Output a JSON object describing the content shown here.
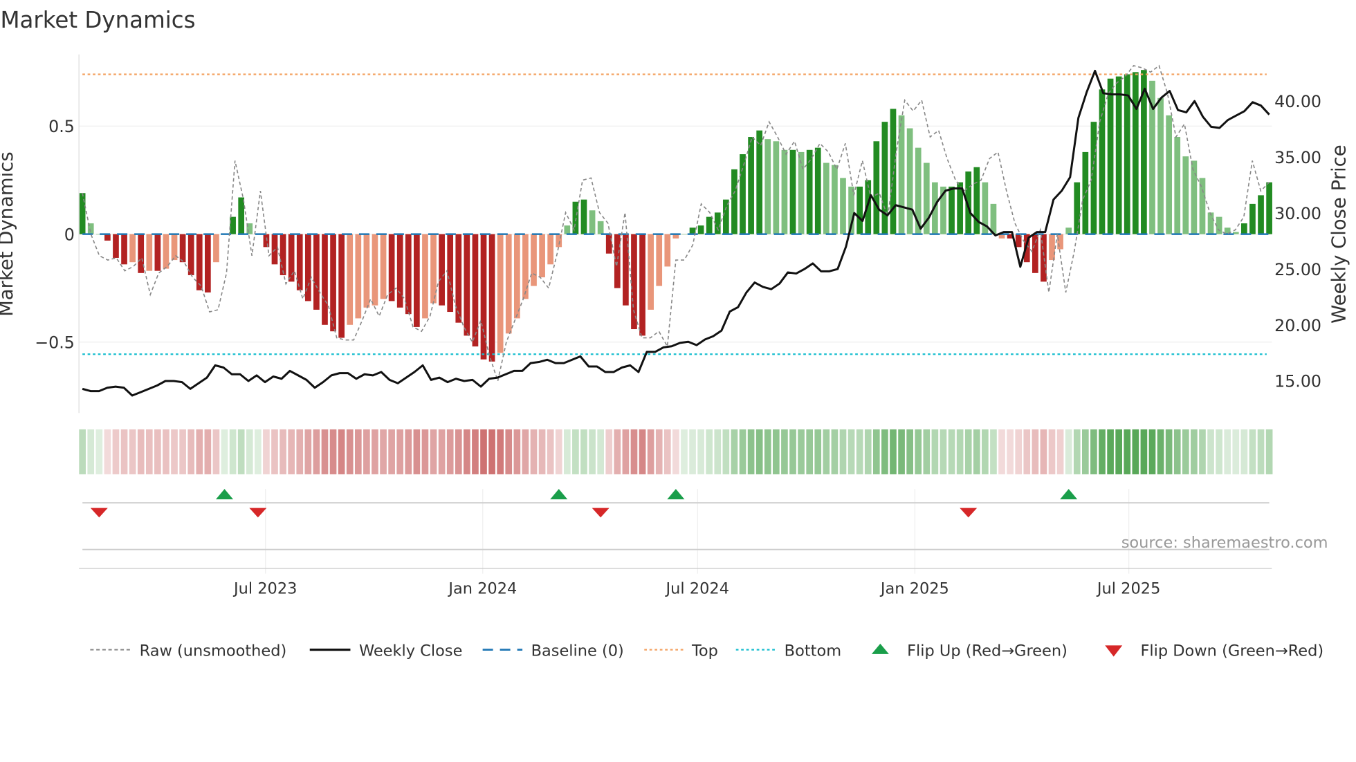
{
  "title": "Market Dynamics",
  "source": "source: sharemaestro.com",
  "chart_data": {
    "type": "bar",
    "title": "Market Dynamics",
    "ylabel": "Market Dynamics",
    "y2label": "Weekly Close Price",
    "ylim": [
      -0.82,
      0.83
    ],
    "y2lim": [
      13.0,
      44.5
    ],
    "yticks": [
      {
        "v": 0.5,
        "label": "0.5"
      },
      {
        "v": 0,
        "label": "0"
      },
      {
        "v": -0.5,
        "label": "−0.5"
      }
    ],
    "y2ticks": [
      {
        "v": 15,
        "label": "15.00"
      },
      {
        "v": 20,
        "label": "20.00"
      },
      {
        "v": 25,
        "label": "25.00"
      },
      {
        "v": 30,
        "label": "30.00"
      },
      {
        "v": 35,
        "label": "35.00"
      },
      {
        "v": 40,
        "label": "40.00"
      }
    ],
    "xticks": [
      {
        "week": 21.9,
        "label": "Jul 2023"
      },
      {
        "week": 47.9,
        "label": "Jan 2024"
      },
      {
        "week": 73.6,
        "label": "Jul 2024"
      },
      {
        "week": 99.6,
        "label": "Jan 2025"
      },
      {
        "week": 125.2,
        "label": "Jul 2025"
      }
    ],
    "top_level": 0.74,
    "bottom_level": -0.556,
    "baseline": 0,
    "bars": [
      0.19,
      0.05,
      0.0,
      -0.03,
      -0.11,
      -0.14,
      -0.13,
      -0.18,
      -0.17,
      -0.17,
      -0.16,
      -0.12,
      -0.13,
      -0.19,
      -0.26,
      -0.27,
      -0.13,
      0.0,
      0.08,
      0.17,
      0.05,
      0.0,
      -0.06,
      -0.14,
      -0.19,
      -0.22,
      -0.26,
      -0.31,
      -0.35,
      -0.42,
      -0.45,
      -0.48,
      -0.42,
      -0.39,
      -0.34,
      -0.33,
      -0.3,
      -0.31,
      -0.34,
      -0.37,
      -0.43,
      -0.39,
      -0.32,
      -0.33,
      -0.36,
      -0.41,
      -0.47,
      -0.52,
      -0.58,
      -0.59,
      -0.55,
      -0.46,
      -0.39,
      -0.3,
      -0.24,
      -0.2,
      -0.14,
      -0.06,
      0.04,
      0.15,
      0.16,
      0.11,
      0.06,
      -0.09,
      -0.25,
      -0.33,
      -0.44,
      -0.47,
      -0.35,
      -0.24,
      -0.15,
      -0.02,
      0.0,
      0.03,
      0.04,
      0.08,
      0.1,
      0.16,
      0.3,
      0.37,
      0.45,
      0.48,
      0.44,
      0.43,
      0.39,
      0.39,
      0.38,
      0.39,
      0.4,
      0.33,
      0.32,
      0.26,
      0.22,
      0.22,
      0.25,
      0.43,
      0.52,
      0.58,
      0.55,
      0.49,
      0.4,
      0.33,
      0.24,
      0.22,
      0.22,
      0.24,
      0.29,
      0.31,
      0.24,
      0.14,
      -0.02,
      -0.02,
      -0.06,
      -0.13,
      -0.18,
      -0.22,
      -0.12,
      -0.07,
      0.03,
      0.24,
      0.38,
      0.52,
      0.67,
      0.72,
      0.73,
      0.74,
      0.75,
      0.76,
      0.71,
      0.63,
      0.55,
      0.45,
      0.36,
      0.34,
      0.26,
      0.1,
      0.08,
      0.03,
      0.01,
      0.05,
      0.14,
      0.18,
      0.24
    ],
    "raw": [
      0.19,
      0.0,
      -0.1,
      -0.12,
      -0.11,
      -0.17,
      -0.15,
      -0.11,
      -0.28,
      -0.18,
      -0.15,
      -0.1,
      -0.13,
      -0.2,
      -0.24,
      -0.36,
      -0.35,
      -0.18,
      0.34,
      0.16,
      -0.1,
      0.2,
      -0.1,
      -0.06,
      -0.23,
      -0.17,
      -0.3,
      -0.2,
      -0.27,
      -0.33,
      -0.48,
      -0.49,
      -0.49,
      -0.4,
      -0.3,
      -0.38,
      -0.28,
      -0.25,
      -0.3,
      -0.43,
      -0.45,
      -0.38,
      -0.22,
      -0.17,
      -0.33,
      -0.43,
      -0.5,
      -0.4,
      -0.56,
      -0.68,
      -0.5,
      -0.4,
      -0.3,
      -0.18,
      -0.2,
      -0.25,
      -0.09,
      0.1,
      0.02,
      0.25,
      0.26,
      0.1,
      0.05,
      -0.15,
      0.1,
      -0.35,
      -0.48,
      -0.48,
      -0.45,
      -0.52,
      -0.12,
      -0.12,
      -0.05,
      0.14,
      0.1,
      0.02,
      0.13,
      0.2,
      0.32,
      0.45,
      0.41,
      0.52,
      0.45,
      0.37,
      0.43,
      0.3,
      0.35,
      0.42,
      0.38,
      0.3,
      0.42,
      0.18,
      0.34,
      0.17,
      0.19,
      0.08,
      0.38,
      0.62,
      0.57,
      0.62,
      0.45,
      0.48,
      0.35,
      0.25,
      0.2,
      0.23,
      0.25,
      0.35,
      0.38,
      0.2,
      0.05,
      -0.03,
      -0.08,
      0.02,
      -0.27,
      0.0,
      -0.27,
      -0.08,
      0.16,
      0.25,
      0.52,
      0.65,
      0.7,
      0.73,
      0.78,
      0.77,
      0.75,
      0.78,
      0.65,
      0.45,
      0.51,
      0.3,
      0.22,
      0.1,
      0.02,
      0.0,
      0.02,
      0.08,
      0.34,
      0.2,
      0.24
    ],
    "weekly_close": [
      14.3,
      14.1,
      14.1,
      14.4,
      14.5,
      14.4,
      13.7,
      14.0,
      14.3,
      14.6,
      15.0,
      15.0,
      14.9,
      14.3,
      14.8,
      15.3,
      16.4,
      16.2,
      15.6,
      15.6,
      15.0,
      15.5,
      14.9,
      15.4,
      15.2,
      15.9,
      15.5,
      15.1,
      14.4,
      14.9,
      15.5,
      15.7,
      15.7,
      15.2,
      15.6,
      15.5,
      15.8,
      15.1,
      14.8,
      15.3,
      15.8,
      16.4,
      15.1,
      15.3,
      14.9,
      15.2,
      15.0,
      15.1,
      14.5,
      15.2,
      15.3,
      15.6,
      15.9,
      15.9,
      16.6,
      16.7,
      16.9,
      16.6,
      16.6,
      16.9,
      17.2,
      16.3,
      16.3,
      15.8,
      15.8,
      16.2,
      16.4,
      15.8,
      17.6,
      17.6,
      18.0,
      18.1,
      18.4,
      18.5,
      18.2,
      18.7,
      19.0,
      19.5,
      21.2,
      21.6,
      22.9,
      23.8,
      23.4,
      23.2,
      23.7,
      24.7,
      24.6,
      25.0,
      25.5,
      24.8,
      24.8,
      25.0,
      27.0,
      30.0,
      29.3,
      31.6,
      30.3,
      29.8,
      30.7,
      30.5,
      30.3,
      28.6,
      29.6,
      31.0,
      32.0,
      32.2,
      32.2,
      30.0,
      29.2,
      28.8,
      28.0,
      28.3,
      28.3,
      25.2,
      27.8,
      28.3,
      28.3,
      31.2,
      32.0,
      33.2,
      38.5,
      40.8,
      42.7,
      40.7,
      40.6,
      40.6,
      40.5,
      39.3,
      41.1,
      39.3,
      40.3,
      40.9,
      39.2,
      39.0,
      40.0,
      38.6,
      37.7,
      37.6,
      38.3,
      38.7,
      39.1,
      39.9,
      39.6,
      38.8
    ],
    "flip_up_weeks": [
      17,
      57,
      71,
      118
    ],
    "flip_down_weeks": [
      2,
      21,
      62,
      106
    ],
    "legend": {
      "placement": "bottom",
      "items": [
        "Raw (unsmoothed)",
        "Weekly Close",
        "Baseline (0)",
        "Top",
        "Bottom",
        "Flip Up (Red→Green)",
        "Flip Down (Green→Red)"
      ]
    },
    "colors": {
      "strong_green": "#228b22",
      "weak_green": "#7fbf7f",
      "strong_red": "#b22222",
      "weak_red": "#e9967a",
      "close": "#111111",
      "raw": "#888888",
      "baseline": "#1f77b4",
      "top": "#f4a261",
      "bottom": "#17becf",
      "flip_up": "#1a9e4a",
      "flip_down": "#d62728"
    }
  }
}
